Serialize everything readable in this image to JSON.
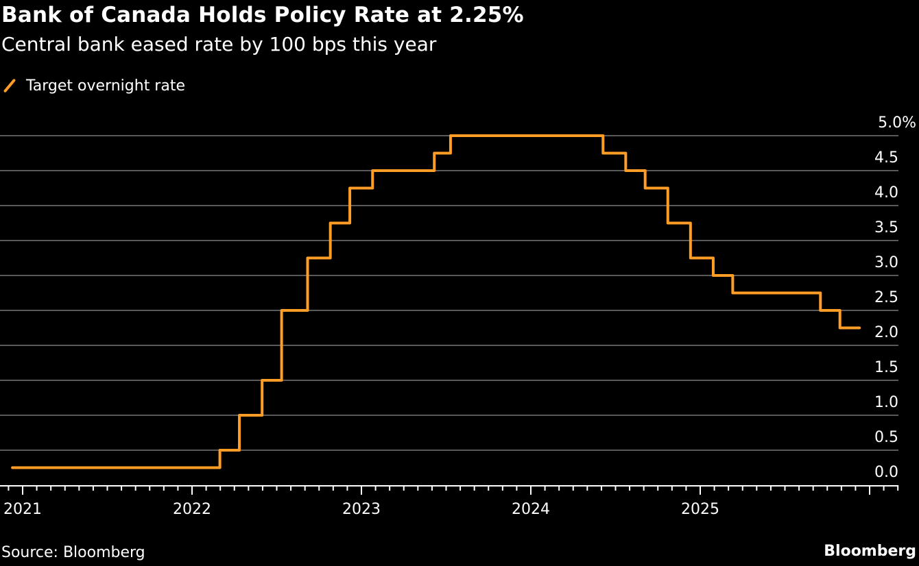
{
  "title": "Bank of Canada Holds Policy Rate at 2.25%",
  "subtitle": "Central bank eased rate by 100 bps this year",
  "source": "Source: Bloomberg",
  "brand": "Bloomberg",
  "colors": {
    "series": "#ff9d26",
    "grid": "#5a5a5a",
    "axis": "#ffffff",
    "background": "#000000"
  },
  "chart_data": {
    "type": "line",
    "step": true,
    "title": "Bank of Canada Holds Policy Rate at 2.25%",
    "subtitle": "Central bank eased rate by 100 bps this year",
    "legend_position": "top-left",
    "grid": true,
    "xlabel": "",
    "ylabel": "",
    "ylim": [
      0,
      5
    ],
    "y_ticks": [
      "5.0%",
      "4.5",
      "4.0",
      "3.5",
      "3.0",
      "2.5",
      "2.0",
      "1.5",
      "1.0",
      "0.5",
      "0.0"
    ],
    "y_tick_values": [
      5,
      4.5,
      4,
      3.5,
      3,
      2.5,
      2,
      1.5,
      1,
      0.5,
      0
    ],
    "x_ticks": [
      "2021",
      "2022",
      "2023",
      "2024",
      "2025"
    ],
    "xlim": [
      "2020-12-10",
      "2025-12-10"
    ],
    "series": [
      {
        "name": "Target overnight rate",
        "points": [
          [
            "2020-12-10",
            0.25
          ],
          [
            "2022-03-02",
            0.5
          ],
          [
            "2022-04-13",
            1.0
          ],
          [
            "2022-06-01",
            1.5
          ],
          [
            "2022-07-13",
            2.5
          ],
          [
            "2022-09-07",
            3.25
          ],
          [
            "2022-10-26",
            3.75
          ],
          [
            "2022-12-07",
            4.25
          ],
          [
            "2023-01-25",
            4.5
          ],
          [
            "2023-06-07",
            4.75
          ],
          [
            "2023-07-12",
            5.0
          ],
          [
            "2024-06-05",
            4.75
          ],
          [
            "2024-07-24",
            4.5
          ],
          [
            "2024-09-04",
            4.25
          ],
          [
            "2024-10-23",
            3.75
          ],
          [
            "2024-12-11",
            3.25
          ],
          [
            "2025-01-29",
            3.0
          ],
          [
            "2025-03-12",
            2.75
          ],
          [
            "2025-09-17",
            2.5
          ],
          [
            "2025-10-29",
            2.25
          ],
          [
            "2025-12-10",
            2.25
          ]
        ]
      }
    ]
  }
}
